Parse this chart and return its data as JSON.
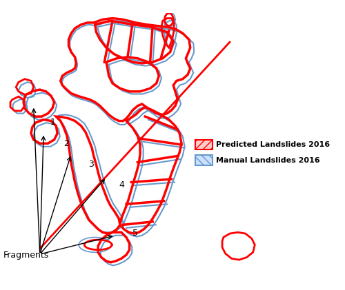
{
  "legend": {
    "predicted_label": "Predicted Landslides 2016",
    "manual_label": "Manual Landslides 2016",
    "predicted_color": "#FF0000",
    "manual_color": "#6699CC",
    "predicted_fill": "#FFCCCC",
    "manual_fill": "#CCE0FF"
  },
  "labels": {
    "fragments": "Fragments"
  },
  "colors": {
    "red": "#FF0000",
    "blue": "#6699CC",
    "background": "#FFFFFF",
    "text": "#000000"
  },
  "figsize": [
    5.0,
    4.21
  ],
  "dpi": 100
}
